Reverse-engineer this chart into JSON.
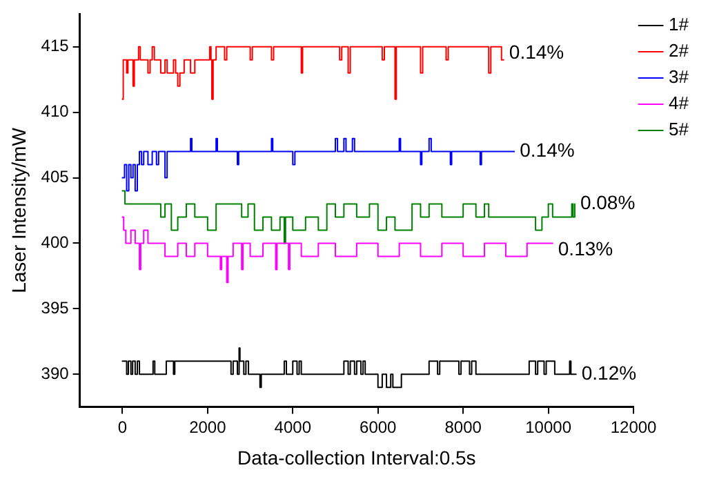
{
  "chart_data": {
    "type": "step",
    "xlabel": "Data-collection Interval:0.5s",
    "ylabel": "Laser Intensity/mW",
    "xlim": [
      -1000,
      12000
    ],
    "xticks": [
      0,
      2000,
      4000,
      6000,
      8000,
      10000,
      12000
    ],
    "ylim": [
      387.5,
      417.5
    ],
    "yticks": [
      390,
      395,
      400,
      405,
      410,
      415
    ],
    "grid": false,
    "legend": "top right",
    "marker": "none",
    "line_style": "solid",
    "series": [
      {
        "name": "1#",
        "color": "#000000",
        "x": [
          0,
          100,
          140,
          200,
          240,
          300,
          350,
          400,
          720,
          760,
          1030,
          1200,
          1230,
          2550,
          2600,
          2700,
          2740,
          2760,
          2850,
          2900,
          2960,
          3230,
          3260,
          3800,
          3850,
          4000,
          4100,
          4150,
          4200,
          5200,
          5300,
          5350,
          5450,
          5500,
          5600,
          5650,
          5700,
          6000,
          6100,
          6200,
          6300,
          6350,
          6550,
          7200,
          7400,
          7450,
          7900,
          7950,
          8150,
          8200,
          8300,
          9550,
          9700,
          9750,
          9900,
          9950,
          10150,
          10500,
          10530,
          10650
        ],
        "values": [
          391,
          390,
          391,
          390,
          391,
          390,
          391,
          390,
          391,
          390,
          391,
          390,
          391,
          390,
          391,
          390,
          392,
          391,
          390,
          391,
          390,
          389,
          390,
          391,
          390,
          391,
          390,
          391,
          390,
          391,
          390,
          391,
          390,
          391,
          390,
          391,
          390,
          389,
          390,
          389,
          390,
          389,
          390,
          391,
          390,
          391,
          390,
          391,
          390,
          391,
          390,
          391,
          390,
          391,
          390,
          391,
          390,
          391,
          390,
          390
        ]
      },
      {
        "name": "2#",
        "color": "#ff0000",
        "x": [
          0,
          20,
          100,
          130,
          250,
          280,
          380,
          420,
          600,
          650,
          700,
          750,
          900,
          1000,
          1050,
          1200,
          1250,
          1300,
          1350,
          1450,
          1600,
          1700,
          2050,
          2080,
          2100,
          2130,
          2200,
          2400,
          2450,
          3000,
          3050,
          3500,
          3550,
          4200,
          4230,
          5100,
          5150,
          5300,
          5350,
          6100,
          6150,
          6400,
          6430,
          7000,
          7050,
          7600,
          7650,
          8600,
          8650,
          8900,
          8950
        ],
        "values": [
          411,
          414,
          413,
          414,
          412,
          414,
          415,
          414,
          413,
          414,
          415,
          414,
          413,
          414,
          413,
          414,
          413,
          412,
          413,
          414,
          413,
          414,
          415,
          414,
          411,
          414,
          415,
          414,
          415,
          414,
          415,
          414,
          415,
          413,
          415,
          414,
          415,
          413,
          415,
          414,
          415,
          411,
          415,
          413,
          415,
          414,
          415,
          413,
          415,
          414,
          414
        ]
      },
      {
        "name": "3#",
        "color": "#0000ff",
        "x": [
          0,
          50,
          100,
          150,
          200,
          250,
          300,
          350,
          400,
          450,
          500,
          600,
          700,
          800,
          850,
          1000,
          1050,
          1600,
          1630,
          2200,
          2230,
          2700,
          2730,
          3500,
          3530,
          4000,
          4050,
          5000,
          5050,
          5200,
          5250,
          5400,
          5450,
          6500,
          6530,
          7000,
          7030,
          7200,
          7250,
          7700,
          7730,
          8400,
          8430,
          9200
        ],
        "values": [
          405,
          406,
          404,
          406,
          405,
          406,
          404,
          406,
          407,
          406,
          407,
          406,
          407,
          406,
          407,
          405,
          407,
          408,
          407,
          408,
          407,
          406,
          407,
          408,
          407,
          406,
          407,
          408,
          407,
          408,
          407,
          408,
          407,
          408,
          407,
          406,
          407,
          408,
          407,
          406,
          407,
          406,
          407,
          407
        ]
      },
      {
        "name": "4#",
        "color": "#ff00ff",
        "x": [
          0,
          30,
          80,
          200,
          300,
          400,
          430,
          500,
          600,
          1000,
          1300,
          1500,
          1700,
          2000,
          2300,
          2330,
          2450,
          2480,
          2600,
          2800,
          2830,
          3000,
          3300,
          3600,
          3630,
          3900,
          3930,
          4200,
          4600,
          5000,
          5500,
          6000,
          6500,
          7000,
          7500,
          8000,
          8500,
          9000,
          9500,
          10100
        ],
        "values": [
          402,
          401,
          400,
          401,
          400,
          398,
          400,
          401,
          400,
          399,
          400,
          399,
          400,
          399,
          398,
          399,
          397,
          399,
          400,
          398,
          400,
          399,
          400,
          398,
          400,
          398,
          400,
          399,
          400,
          399,
          400,
          399,
          400,
          399,
          400,
          399,
          400,
          399,
          400,
          400
        ]
      },
      {
        "name": "5#",
        "color": "#008000",
        "x": [
          0,
          60,
          900,
          1000,
          1150,
          1300,
          1500,
          1700,
          2000,
          2200,
          2800,
          2950,
          3100,
          3300,
          3500,
          3700,
          3800,
          3830,
          4000,
          4300,
          4600,
          4800,
          5000,
          5200,
          5500,
          5800,
          6000,
          6200,
          6400,
          6800,
          7000,
          7200,
          7500,
          8000,
          8300,
          8500,
          8600,
          9700,
          9850,
          10000,
          10100,
          10550,
          10580,
          10620
        ],
        "values": [
          404,
          403,
          402,
          403,
          401,
          402,
          403,
          402,
          401,
          403,
          402,
          403,
          401,
          402,
          401,
          402,
          400,
          402,
          401,
          402,
          401,
          403,
          402,
          403,
          402,
          403,
          401,
          402,
          401,
          403,
          402,
          403,
          402,
          403,
          402,
          403,
          402,
          401,
          402,
          403,
          402,
          403,
          402,
          403
        ]
      }
    ],
    "annotations": [
      {
        "text": "0.14%",
        "x": 8950,
        "y": 414.5
      },
      {
        "text": "0.14%",
        "x": 9200,
        "y": 407
      },
      {
        "text": "0.08%",
        "x": 10620,
        "y": 403
      },
      {
        "text": "0.13%",
        "x": 10100,
        "y": 399.5
      },
      {
        "text": "0.12%",
        "x": 10650,
        "y": 390
      }
    ]
  }
}
